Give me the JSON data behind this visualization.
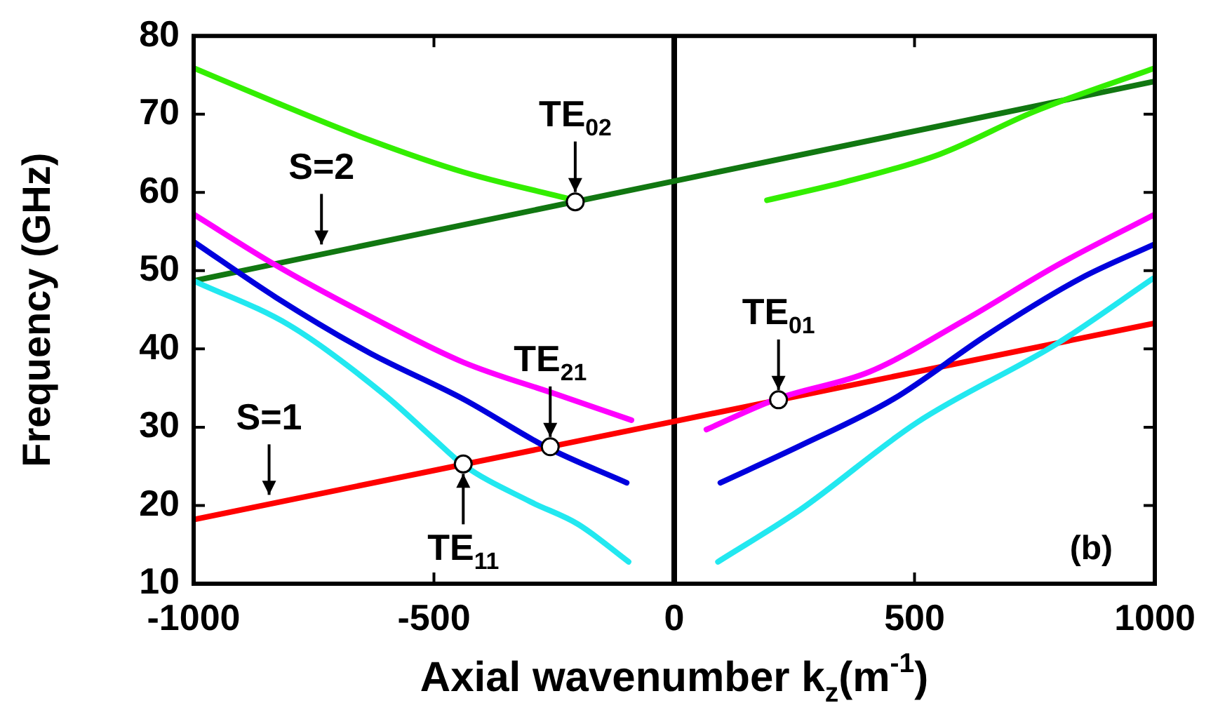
{
  "chart_data": {
    "type": "line",
    "xlabel": "Axial wavenumber k$_{z}$(m$^{-1}$)",
    "ylabel": "Frequency (GHz)",
    "xlim": [
      -1000,
      1000
    ],
    "xticks": [
      -1000,
      -500,
      0,
      500,
      1000
    ],
    "ylim": [
      10,
      80
    ],
    "yticks": [
      10,
      20,
      30,
      40,
      50,
      60,
      70,
      80
    ],
    "grid": false,
    "legend": false,
    "marker": "none",
    "line_style": "solid",
    "series": [
      {
        "color": "#33ee00",
        "x": [
          -1000,
          -829,
          -634,
          -439,
          -206
        ],
        "values": [
          75.9,
          71.5,
          66.7,
          62.6,
          59.0
        ]
      },
      {
        "color": "#33ee00",
        "x": [
          193,
          359,
          553,
          748,
          1000
        ],
        "values": [
          59.0,
          61.4,
          64.9,
          70.3,
          75.9
        ]
      },
      {
        "color": "#ff00ff",
        "x": [
          -1000,
          -829,
          -634,
          -439,
          -245,
          -89
        ],
        "values": [
          57.2,
          50.7,
          44.2,
          38.3,
          34.2,
          30.9
        ]
      },
      {
        "color": "#ff00ff",
        "x": [
          67,
          213,
          407,
          602,
          797,
          1000
        ],
        "values": [
          29.7,
          33.6,
          37.1,
          43.6,
          50.7,
          57.2
        ]
      },
      {
        "color": "#0000dd",
        "x": [
          -1000,
          -829,
          -634,
          -439,
          -264,
          -99
        ],
        "values": [
          53.7,
          46.6,
          39.5,
          33.6,
          27.4,
          22.9
        ]
      },
      {
        "color": "#0000dd",
        "x": [
          96,
          261,
          456,
          651,
          845,
          1000
        ],
        "values": [
          22.9,
          27.6,
          33.6,
          41.8,
          49.0,
          53.4
        ]
      },
      {
        "color": "#22e8f0",
        "x": [
          -1000,
          -800,
          -600,
          -500,
          -439,
          -300,
          -200,
          -95
        ],
        "values": [
          48.7,
          43,
          34,
          28.5,
          25.2,
          20.5,
          17.6,
          12.8
        ]
      },
      {
        "color": "#22e8f0",
        "x": [
          91,
          261,
          505,
          797,
          996
        ],
        "values": [
          12.8,
          19.4,
          30.6,
          40.7,
          49.0
        ]
      },
      {
        "color": "#117711",
        "x": [
          -1000,
          1000
        ],
        "values": [
          48.7,
          74.2
        ]
      },
      {
        "color": "#ff0000",
        "x": [
          -1000,
          1000
        ],
        "values": [
          18.2,
          43.3
        ]
      },
      {
        "type": "scatter",
        "marker": "circle",
        "color": "#ffffff",
        "x": [
          -206,
          -258,
          -439,
          217
        ],
        "values": [
          58.8,
          27.5,
          25.3,
          33.5
        ]
      }
    ],
    "ref_lines": [
      {
        "axis": "x",
        "value": 0,
        "color": "#000000"
      }
    ],
    "annotations": [
      {
        "text": "TE$_{02}$",
        "x": -206,
        "y": 58.8
      },
      {
        "text": "TE$_{21}$",
        "x": -258,
        "y": 27.5
      },
      {
        "text": "TE$_{11}$",
        "x": -439,
        "y": 25.3
      },
      {
        "text": "TE$_{01}$",
        "x": 217,
        "y": 33.5
      },
      {
        "text": "S=2",
        "x": -734,
        "y": 52.1
      },
      {
        "text": "S=1",
        "x": -843,
        "y": 20.1
      },
      "(b)"
    ]
  }
}
